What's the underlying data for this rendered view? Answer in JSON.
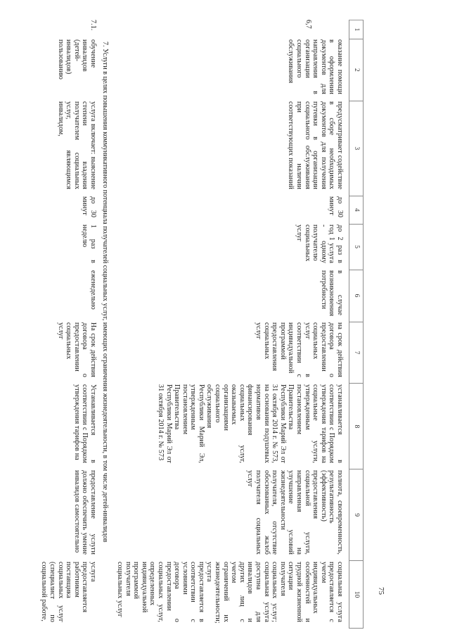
{
  "page": {
    "number": "75"
  },
  "section": {
    "heading": "7. Услуги в целях повышения коммуникативного потенциала получателей социальных услуг, имеющих ограничения жизнедеятельности, в том числе детей-инвалидов"
  },
  "table": {
    "column_numbers": [
      "1",
      "2",
      "3",
      "4",
      "5",
      "6",
      "7",
      "8",
      "9",
      "10"
    ],
    "rows": [
      {
        "cells": [
          "6,7",
          "оказание помощи в оформлении документов для направления в организации социального обслуживания",
          "предусматривает содействие в сборе необходимых документов для получения путевки в организации социального обслуживания при наличии соответствующих показаний",
          "до 30 минут",
          "до 2 раз в год 1 услуга - одному получателю социальных услуг",
          "в случае возникновения потребности",
          "на срок действия договора о предоставлении социальных услуг в соответствии с индивидуальной программой предоставления социальных услуг",
          "устанавливается в соответствии с Порядком утверждения тарифов на социальные услуги, утвержденным постановлением Правительства Республики Марий Эл от 31 октября 2014 г. № 573, на основании подушевых нормативов финансирования социальных услуг, оказываемых организациями социального обслуживания Республики Марий Эл, утвержденным постановлением Правительства Республики Марий Эл от 31 октября 2014 г. № 573",
          "полнота, своевременность, результативность (эффективность) предоставления социальной услуги, направленная на улучшение условий жизнедеятельности получателя, отсутствие обоснованных жалоб получателя социальных услуг",
          "социальная услуга предоставляется с учетом индивидуальных особенностей и трудной жизненной ситуации получателя социальных услуг; социальная услуга доступна для инвалидов и других лиц с учетом ограничений их жизнедеятельности; услуга предоставляется в соответствии с условиями договора о предоставлении социальных услуг, определенных индивидуальной программой получателя социальных услуг"
        ]
      },
      {
        "cells": [
          "7.1.",
          "обучение инвалидов (детей-инвалидов) пользованию",
          "услуга включает: выяснение степени владения получателем социальных услуг, являющимся инвалидом,",
          "до 30 минут",
          "1 раз в неделю",
          "еженедельно",
          "На срок действия договора о предоставлении социальных услуг",
          "Устанавливается в соответствии с Порядком утверждения тарифов на",
          "предоставление услуги должно обеспечить умение инвалидов самостоятельно",
          "услуга предоставляется работником поставщика социальных услуг (специалист по социальной работе,"
        ]
      }
    ]
  }
}
